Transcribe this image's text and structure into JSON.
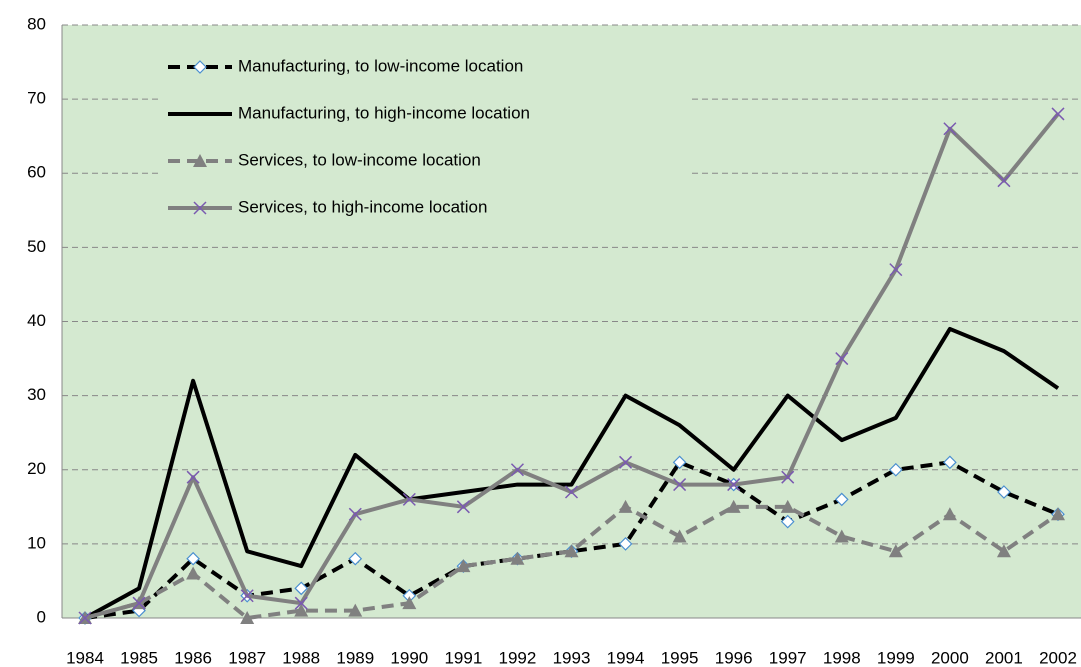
{
  "chart_data": {
    "type": "line",
    "categories": [
      "1984",
      "1985",
      "1986",
      "1987",
      "1988",
      "1989",
      "1990",
      "1991",
      "1992",
      "1993",
      "1994",
      "1995",
      "1996",
      "1997",
      "1998",
      "1999",
      "2000",
      "2001",
      "2002"
    ],
    "series": [
      {
        "name": "Manufacturing, to low-income location",
        "color": "#000000",
        "dash": true,
        "marker": "diamond",
        "values": [
          0,
          1,
          8,
          3,
          4,
          8,
          3,
          7,
          8,
          9,
          10,
          21,
          18,
          13,
          16,
          20,
          21,
          17,
          14
        ]
      },
      {
        "name": "Manufacturing, to high-income location",
        "color": "#000000",
        "dash": false,
        "marker": "none",
        "values": [
          0,
          4,
          32,
          9,
          7,
          22,
          16,
          17,
          18,
          18,
          30,
          26,
          20,
          30,
          24,
          27,
          39,
          36,
          31
        ]
      },
      {
        "name": "Services, to low-income location",
        "color": "#808080",
        "dash": true,
        "marker": "triangle",
        "values": [
          0,
          2,
          6,
          0,
          1,
          1,
          2,
          7,
          8,
          9,
          15,
          11,
          15,
          15,
          11,
          9,
          14,
          9,
          14
        ]
      },
      {
        "name": "Services, to high-income location",
        "color": "#808080",
        "dash": false,
        "marker": "cross",
        "values": [
          0,
          2,
          19,
          3,
          2,
          14,
          16,
          15,
          20,
          17,
          21,
          18,
          18,
          19,
          35,
          47,
          66,
          59,
          68
        ]
      }
    ],
    "ylim": [
      0,
      80
    ],
    "yticks": [
      0,
      10,
      20,
      30,
      40,
      50,
      60,
      70,
      80
    ],
    "grid": true,
    "legend": "top-left"
  }
}
